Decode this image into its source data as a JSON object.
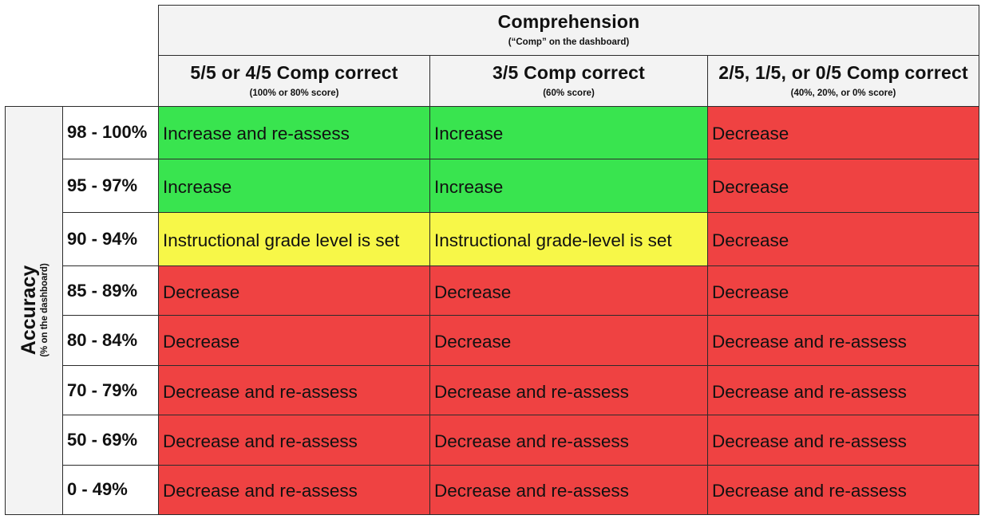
{
  "header": {
    "title": "Comprehension",
    "subtitle": "(“Comp” on the dashboard)",
    "columns": [
      {
        "label": "5/5 or 4/5 Comp correct",
        "sub": "(100% or 80% score)"
      },
      {
        "label": "3/5 Comp correct",
        "sub": "(60% score)"
      },
      {
        "label": "2/5, 1/5, or 0/5 Comp correct",
        "sub": "(40%, 20%, or 0% score)"
      }
    ]
  },
  "axis": {
    "title": "Accuracy",
    "subtitle": "(% on the dashboard)"
  },
  "colors": {
    "increase": "#39e44f",
    "set": "#f7f748",
    "decrease": "#ef4242",
    "header_bg": "#f3f3f3"
  },
  "rows": [
    {
      "range": "98 - 100%",
      "cells": [
        {
          "text": "Increase and re-assess",
          "status": "green"
        },
        {
          "text": "Increase",
          "status": "green"
        },
        {
          "text": "Decrease",
          "status": "red"
        }
      ]
    },
    {
      "range": "95 - 97%",
      "cells": [
        {
          "text": "Increase",
          "status": "green"
        },
        {
          "text": "Increase",
          "status": "green"
        },
        {
          "text": "Decrease",
          "status": "red"
        }
      ]
    },
    {
      "range": "90 - 94%",
      "cells": [
        {
          "text": "Instructional grade level is set",
          "status": "yellow"
        },
        {
          "text": "Instructional grade-level is set",
          "status": "yellow"
        },
        {
          "text": "Decrease",
          "status": "red"
        }
      ]
    },
    {
      "range": "85 - 89%",
      "cells": [
        {
          "text": "Decrease",
          "status": "red"
        },
        {
          "text": "Decrease",
          "status": "red"
        },
        {
          "text": "Decrease",
          "status": "red"
        }
      ]
    },
    {
      "range": "80 - 84%",
      "cells": [
        {
          "text": "Decrease",
          "status": "red"
        },
        {
          "text": "Decrease",
          "status": "red"
        },
        {
          "text": "Decrease and re-assess",
          "status": "red"
        }
      ]
    },
    {
      "range": "70 - 79%",
      "cells": [
        {
          "text": "Decrease and re-assess",
          "status": "red"
        },
        {
          "text": "Decrease and re-assess",
          "status": "red"
        },
        {
          "text": "Decrease and re-assess",
          "status": "red"
        }
      ]
    },
    {
      "range": "50 - 69%",
      "cells": [
        {
          "text": "Decrease and re-assess",
          "status": "red"
        },
        {
          "text": "Decrease and re-assess",
          "status": "red"
        },
        {
          "text": "Decrease and re-assess",
          "status": "red"
        }
      ]
    },
    {
      "range": "0 - 49%",
      "cells": [
        {
          "text": "Decrease and re-assess",
          "status": "red"
        },
        {
          "text": "Decrease and re-assess",
          "status": "red"
        },
        {
          "text": "Decrease and re-assess",
          "status": "red"
        }
      ]
    }
  ]
}
